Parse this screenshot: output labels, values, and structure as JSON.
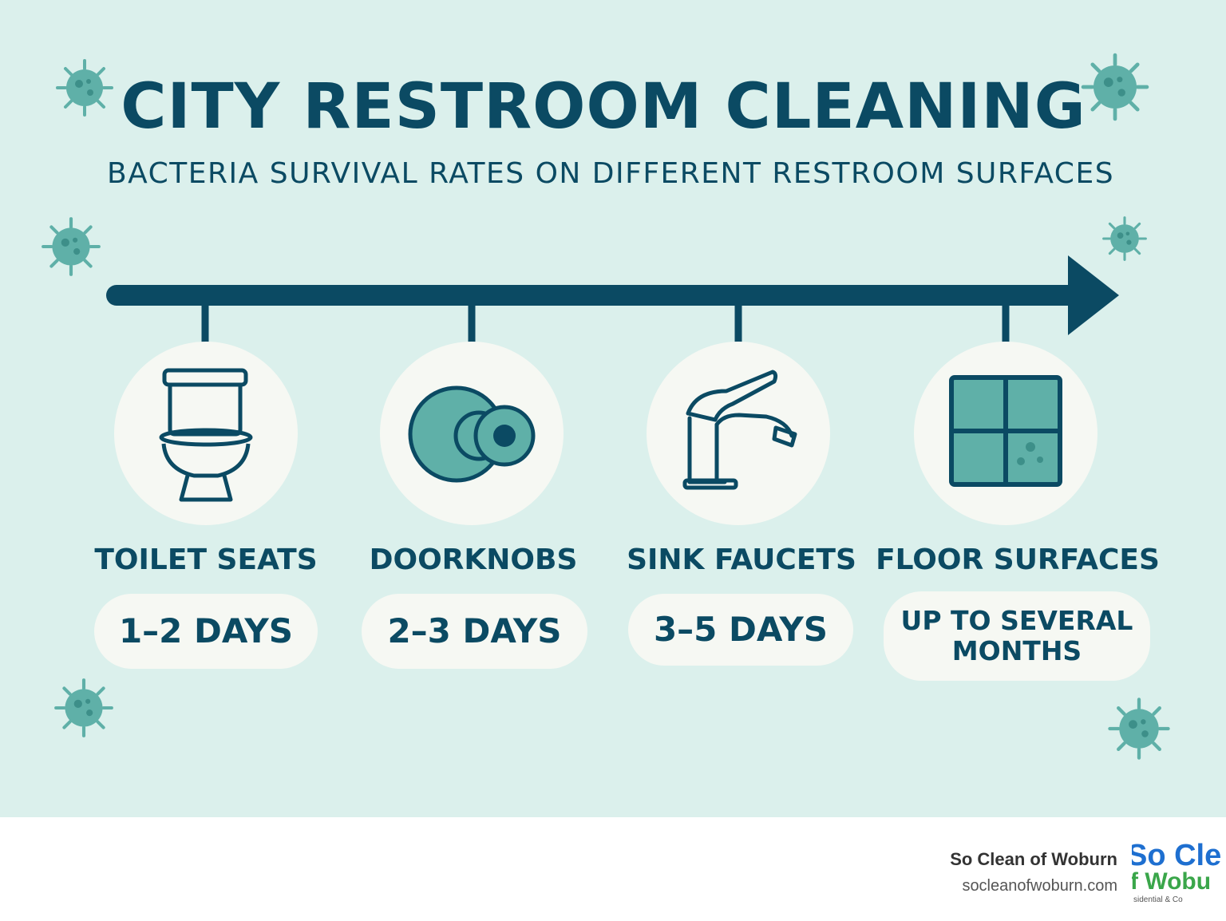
{
  "header": {
    "title": "CITY RESTROOM CLEANING",
    "subtitle": "BACTERIA SURVIVAL RATES ON DIFFERENT RESTROOM SURFACES"
  },
  "surfaces": [
    {
      "label": "TOILET SEATS",
      "duration": "1–2 DAYS",
      "icon": "toilet-icon"
    },
    {
      "label": "DOORKNOBS",
      "duration": "2–3 DAYS",
      "icon": "doorknob-icon"
    },
    {
      "label": "SINK FAUCETS",
      "duration": "3–5 DAYS",
      "icon": "faucet-icon"
    },
    {
      "label": "FLOOR SURFACES",
      "duration": "UP TO SEVERAL MONTHS",
      "icon": "floor-tile-icon"
    }
  ],
  "footer": {
    "company": "So Clean of Woburn",
    "url": "socleanofwoburn.com",
    "logo_text": "So Clean of Woburn"
  },
  "colors": {
    "background": "#dbf0ec",
    "primary": "#0b4a63",
    "accent": "#5fb0a8",
    "card": "#f6f8f3"
  }
}
